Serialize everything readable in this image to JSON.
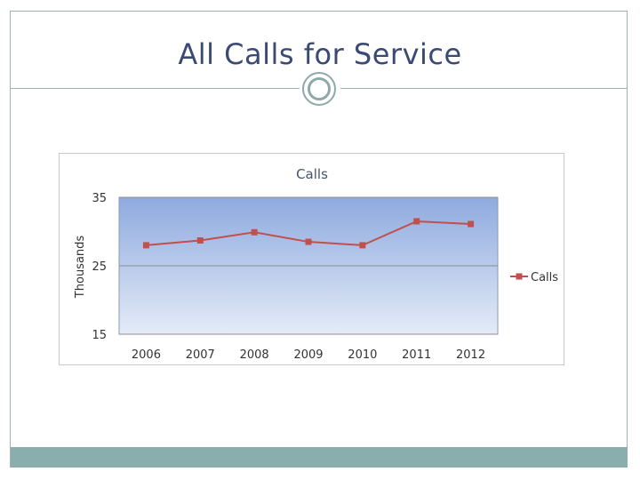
{
  "slide": {
    "title": "All Calls for Service"
  },
  "colors": {
    "accent": "#8aaeae",
    "title_text": "#3b4a73",
    "series": "#c0504d",
    "plot_top": "#8eaadf",
    "plot_bottom": "#e4ebf7"
  },
  "chart_data": {
    "type": "line",
    "title": "Calls",
    "xlabel": "",
    "ylabel": "Thousands",
    "categories": [
      "2006",
      "2007",
      "2008",
      "2009",
      "2010",
      "2011",
      "2012"
    ],
    "series": [
      {
        "name": "Calls",
        "values": [
          28.0,
          28.7,
          29.9,
          28.5,
          28.0,
          31.5,
          31.1
        ]
      }
    ],
    "ylim": [
      15,
      35
    ],
    "yticks": [
      "15",
      "25",
      "35"
    ],
    "grid": true,
    "legend": "right"
  }
}
